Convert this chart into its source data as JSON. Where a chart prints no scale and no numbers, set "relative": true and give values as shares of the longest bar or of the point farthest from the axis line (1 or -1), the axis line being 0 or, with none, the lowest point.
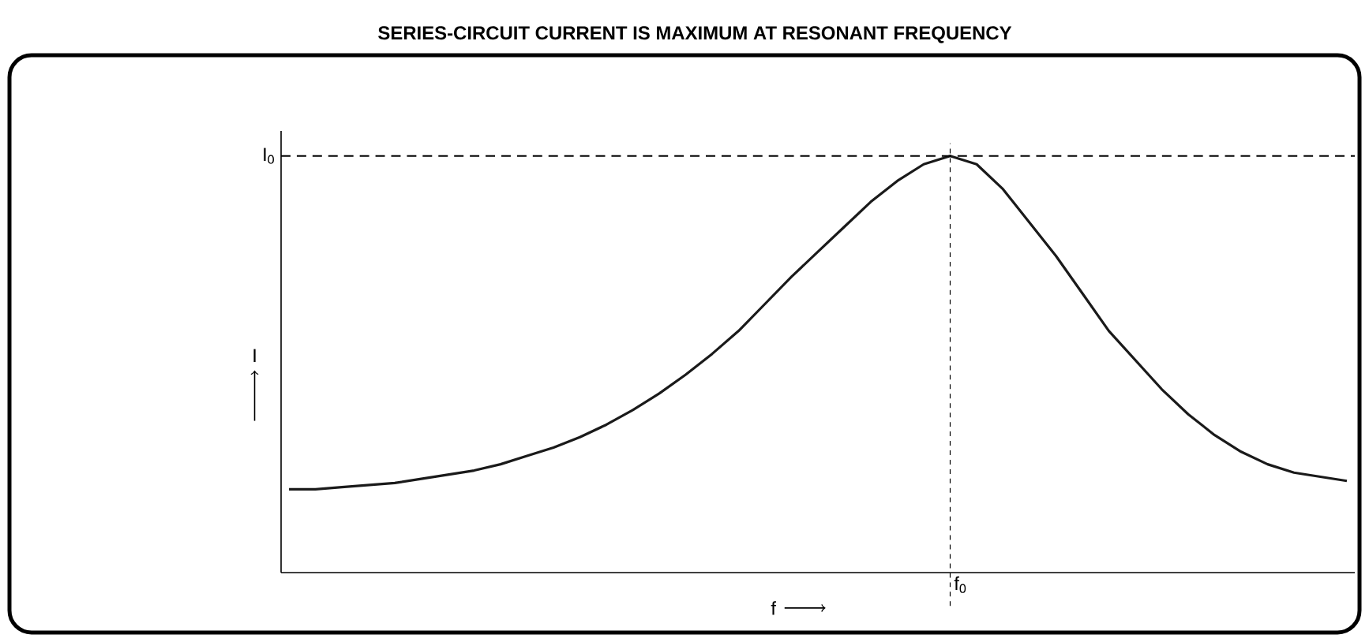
{
  "chart_data": {
    "type": "line",
    "title": "SERIES-CIRCUIT CURRENT IS MAXIMUM AT RESONANT FREQUENCY",
    "xlabel": "f",
    "ylabel": "I",
    "relative": true,
    "categories": [
      null,
      null,
      null,
      null,
      null,
      null,
      null,
      null,
      null,
      null,
      null,
      null,
      null,
      null,
      null,
      null,
      null,
      null,
      null,
      null,
      null,
      null,
      null,
      null,
      null,
      null,
      null,
      null,
      null,
      null,
      null,
      null,
      null,
      null,
      null,
      null,
      null,
      null,
      null,
      null,
      null
    ],
    "series": [
      {
        "color": "#1a1a1a",
        "values": [
          0.2,
          0.2,
          0.205,
          0.21,
          0.215,
          0.225,
          0.235,
          0.245,
          0.26,
          0.28,
          0.3,
          0.325,
          0.355,
          0.39,
          0.43,
          0.475,
          0.525,
          0.58,
          0.645,
          0.71,
          0.77,
          0.83,
          0.89,
          0.94,
          0.98,
          1.0,
          0.98,
          0.92,
          0.84,
          0.76,
          0.67,
          0.58,
          0.51,
          0.44,
          0.38,
          0.33,
          0.29,
          0.26,
          0.24,
          0.23,
          0.22
        ]
      }
    ],
    "annotations": [
      "f$_{0}$"
    ],
    "ref_lines": [
      {
        "axis": "y",
        "value": 1.0,
        "label": "I$_{0}$",
        "line_style": "dashed"
      }
    ]
  }
}
